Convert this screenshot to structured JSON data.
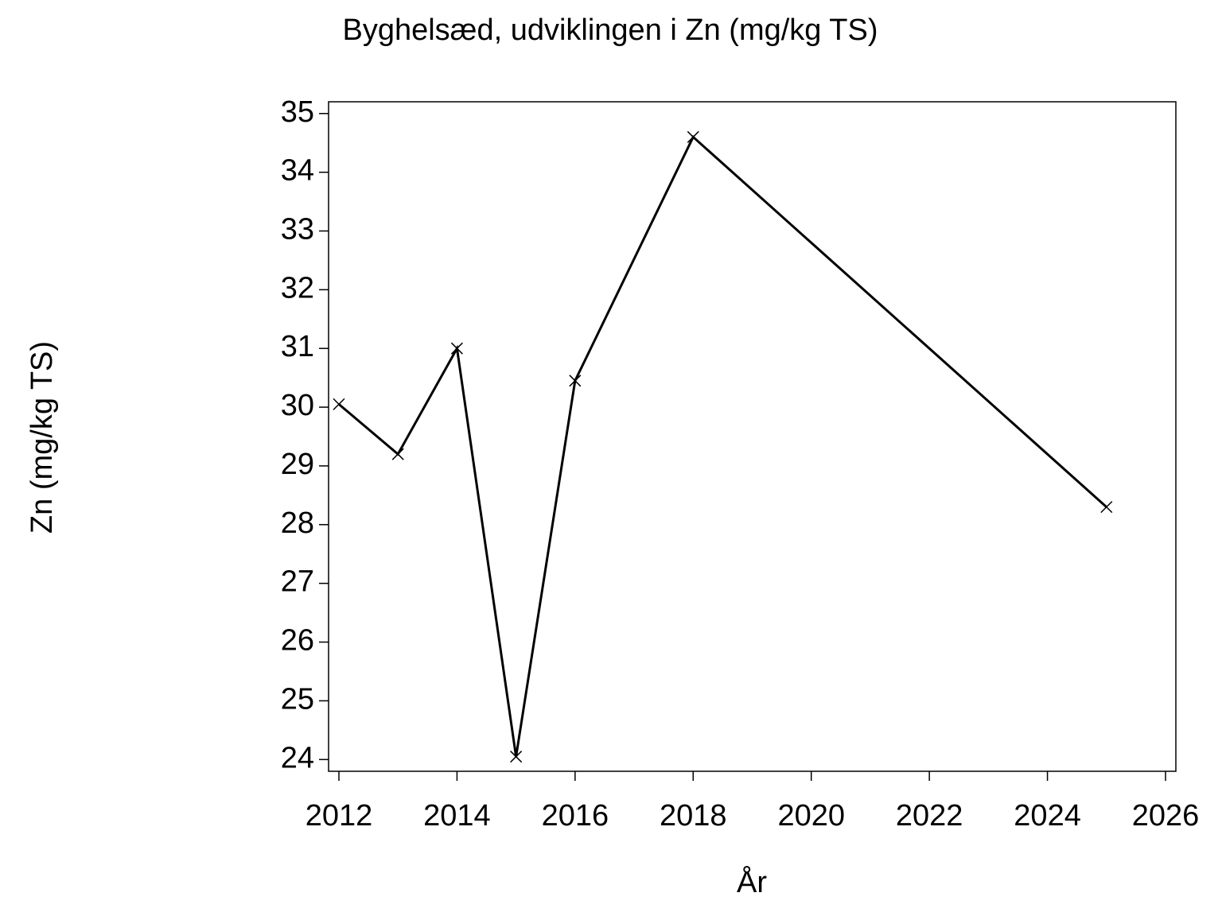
{
  "chart_data": {
    "type": "line",
    "title": "Byghelsæd, udviklingen i Zn (mg/kg TS)",
    "x_label": "År",
    "y_label": "Zn (mg/kg TS)",
    "x": [
      2012,
      2013,
      2014,
      2015,
      2016,
      2018,
      2025
    ],
    "series": [
      {
        "name": "Zn",
        "color": "#000000",
        "values": [
          30.05,
          29.2,
          31.0,
          24.05,
          30.45,
          34.6,
          28.3
        ]
      }
    ],
    "xlim": [
      2011.825,
      2026.175
    ],
    "xticks": [
      2012,
      2014,
      2016,
      2018,
      2020,
      2022,
      2024,
      2026
    ],
    "ylim": [
      23.8,
      35.2
    ],
    "yticks": [
      24,
      25,
      26,
      27,
      28,
      29,
      30,
      31,
      32,
      33,
      34,
      35
    ],
    "grid": false,
    "marker": "x"
  }
}
